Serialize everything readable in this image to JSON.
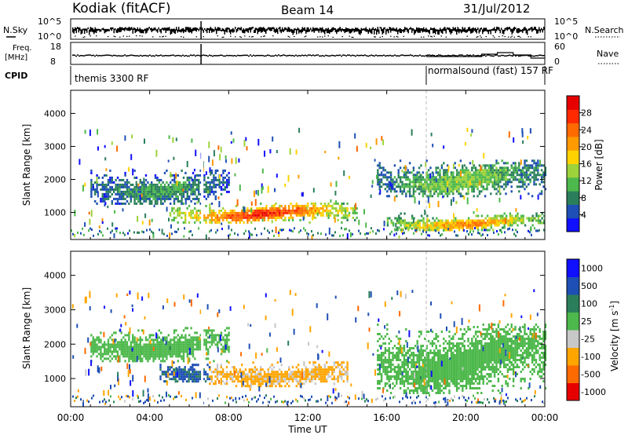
{
  "header": {
    "station": "Kodiak (fitACF)",
    "beam": "Beam 14",
    "date": "31/Jul/2012"
  },
  "summary_panels": {
    "sky_label": "N.Sky",
    "search_label": "N.Search",
    "freq_label_line1": "Freq.",
    "freq_label_line2": "[MHz]",
    "nave_label": "Nave",
    "cpid_label": "CPID",
    "noise_left_ticks": [
      "10^5",
      "10^0"
    ],
    "noise_right_ticks": [
      "10^5",
      "10^0"
    ],
    "freq_ticks": [
      "18",
      "8"
    ],
    "nave_ticks": [
      "60",
      "0"
    ],
    "cpid_segments": [
      {
        "label": "themis 3300 RF",
        "start_hour": 0,
        "end_hour": 18
      },
      {
        "label": "normalsound (fast) 157 RF",
        "start_hour": 18,
        "end_hour": 24
      }
    ]
  },
  "chart_data": [
    {
      "type": "heatmap",
      "title": "",
      "ylabel": "Slant Range [km]",
      "xlabel": "",
      "xlim": [
        0,
        24
      ],
      "ylim": [
        180,
        4700
      ],
      "yticks": [
        1000,
        2000,
        3000,
        4000
      ],
      "colorbar": {
        "label": "Power [dB]",
        "range": [
          0,
          32
        ],
        "ticks": [
          4,
          8,
          12,
          16,
          20,
          24,
          28
        ],
        "colors": [
          "#1010ff",
          "#1e4fb4",
          "#2a7f5a",
          "#4db84b",
          "#9dd23a",
          "#ffd200",
          "#ff9a00",
          "#ff6a00",
          "#ff2a00",
          "#e60000"
        ]
      },
      "features": [
        {
          "name": "lower echo band",
          "start_hour": 5.0,
          "end_hour": 14.5,
          "range_km": [
            700,
            1300
          ],
          "peak_db": 28
        },
        {
          "name": "upper echo band",
          "start_hour": 1.0,
          "end_hour": 8.0,
          "range_km": [
            1300,
            2300
          ],
          "peak_db": 10
        },
        {
          "name": "evening echo band",
          "start_hour": 15.5,
          "end_hour": 24.0,
          "range_km": [
            1500,
            2600
          ],
          "peak_db": 14
        },
        {
          "name": "near range echoes",
          "start_hour": 16.0,
          "end_hour": 24.0,
          "range_km": [
            450,
            1000
          ],
          "peak_db": 22
        }
      ]
    },
    {
      "type": "heatmap",
      "title": "",
      "ylabel": "Slant Range [km]",
      "xlabel": "Time UT",
      "xlim": [
        0,
        24
      ],
      "ylim": [
        180,
        4700
      ],
      "yticks": [
        1000,
        2000,
        3000,
        4000
      ],
      "xticks": [
        "00:00",
        "04:00",
        "08:00",
        "12:00",
        "16:00",
        "20:00",
        "00:00"
      ],
      "colorbar": {
        "label": "Velocity [m s^-1]",
        "ticks": [
          "1000",
          "500",
          "100",
          "25",
          "-25",
          "-100",
          "-500",
          "-1000"
        ],
        "colors": [
          "#1010ff",
          "#1e4fb4",
          "#2a7f5a",
          "#4db84b",
          "#c8c8c8",
          "#ffa500",
          "#ff6a00",
          "#e60000"
        ]
      },
      "features": [
        {
          "name": "ground scatter",
          "start_hour": 1.0,
          "end_hour": 8.0,
          "range_km": [
            1500,
            2500
          ],
          "velocity_ms": 0
        },
        {
          "name": "negative velocity region",
          "start_hour": 7.0,
          "end_hour": 14.0,
          "range_km": [
            800,
            1500
          ],
          "velocity_ms": -150
        },
        {
          "name": "positive velocity region",
          "start_hour": 4.5,
          "end_hour": 7.0,
          "range_km": [
            900,
            1500
          ],
          "velocity_ms": 150
        },
        {
          "name": "evening ground scatter",
          "start_hour": 15.5,
          "end_hour": 24.0,
          "range_km": [
            600,
            2600
          ],
          "velocity_ms": 0
        }
      ]
    }
  ]
}
